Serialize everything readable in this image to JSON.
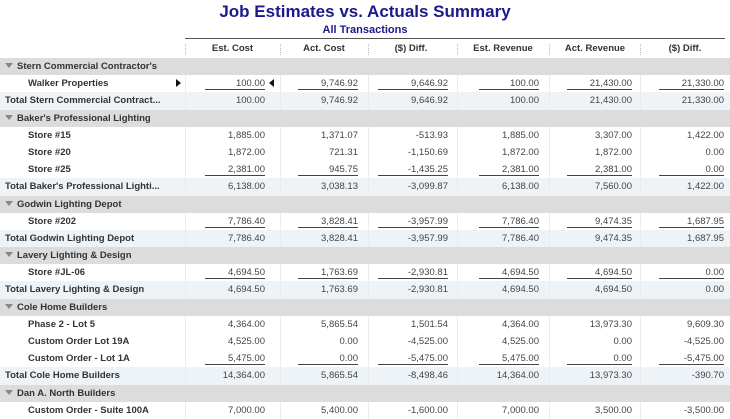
{
  "report": {
    "title": "Job Estimates vs. Actuals Summary",
    "subtitle": "All Transactions"
  },
  "columns": [
    "Est. Cost",
    "Act. Cost",
    "($) Diff.",
    "Est. Revenue",
    "Act. Revenue",
    "($) Diff."
  ],
  "rows": [
    {
      "type": "group",
      "label": "Stern Commercial Contractor's"
    },
    {
      "type": "item",
      "label": "Walker Properties",
      "values": [
        "100.00",
        "9,746.92",
        "9,646.92",
        "100.00",
        "21,430.00",
        "21,330.00"
      ],
      "underline": true,
      "selected": true
    },
    {
      "type": "total",
      "label": "Total Stern Commercial Contract...",
      "values": [
        "100.00",
        "9,746.92",
        "9,646.92",
        "100.00",
        "21,430.00",
        "21,330.00"
      ]
    },
    {
      "type": "group",
      "label": "Baker's Professional Lighting"
    },
    {
      "type": "item",
      "label": "Store #15",
      "values": [
        "1,885.00",
        "1,371.07",
        "-513.93",
        "1,885.00",
        "3,307.00",
        "1,422.00"
      ]
    },
    {
      "type": "item",
      "label": "Store #20",
      "values": [
        "1,872.00",
        "721.31",
        "-1,150.69",
        "1,872.00",
        "1,872.00",
        "0.00"
      ]
    },
    {
      "type": "item",
      "label": "Store #25",
      "values": [
        "2,381.00",
        "945.75",
        "-1,435.25",
        "2,381.00",
        "2,381.00",
        "0.00"
      ],
      "underline": true
    },
    {
      "type": "total",
      "label": "Total Baker's Professional Lighti...",
      "values": [
        "6,138.00",
        "3,038.13",
        "-3,099.87",
        "6,138.00",
        "7,560.00",
        "1,422.00"
      ]
    },
    {
      "type": "group",
      "label": "Godwin Lighting Depot"
    },
    {
      "type": "item",
      "label": "Store #202",
      "values": [
        "7,786.40",
        "3,828.41",
        "-3,957.99",
        "7,786.40",
        "9,474.35",
        "1,687.95"
      ],
      "underline": true
    },
    {
      "type": "total",
      "label": "Total Godwin Lighting Depot",
      "values": [
        "7,786.40",
        "3,828.41",
        "-3,957.99",
        "7,786.40",
        "9,474.35",
        "1,687.95"
      ]
    },
    {
      "type": "group",
      "label": "Lavery Lighting & Design"
    },
    {
      "type": "item",
      "label": "Store #JL-06",
      "values": [
        "4,694.50",
        "1,763.69",
        "-2,930.81",
        "4,694.50",
        "4,694.50",
        "0.00"
      ],
      "underline": true
    },
    {
      "type": "total",
      "label": "Total Lavery Lighting & Design",
      "values": [
        "4,694.50",
        "1,763.69",
        "-2,930.81",
        "4,694.50",
        "4,694.50",
        "0.00"
      ]
    },
    {
      "type": "group",
      "label": "Cole Home Builders"
    },
    {
      "type": "item",
      "label": "Phase 2 - Lot 5",
      "values": [
        "4,364.00",
        "5,865.54",
        "1,501.54",
        "4,364.00",
        "13,973.30",
        "9,609.30"
      ]
    },
    {
      "type": "item",
      "label": "Custom Order Lot 19A",
      "values": [
        "4,525.00",
        "0.00",
        "-4,525.00",
        "4,525.00",
        "0.00",
        "-4,525.00"
      ]
    },
    {
      "type": "item",
      "label": "Custom Order - Lot 1A",
      "values": [
        "5,475.00",
        "0.00",
        "-5,475.00",
        "5,475.00",
        "0.00",
        "-5,475.00"
      ],
      "underline": true
    },
    {
      "type": "total",
      "label": "Total Cole Home Builders",
      "values": [
        "14,364.00",
        "5,865.54",
        "-8,498.46",
        "14,364.00",
        "13,973.30",
        "-390.70"
      ]
    },
    {
      "type": "group",
      "label": "Dan A. North Builders"
    },
    {
      "type": "item",
      "label": "Custom Order - Suite 100A",
      "values": [
        "7,000.00",
        "5,400.00",
        "-1,600.00",
        "7,000.00",
        "3,500.00",
        "-3,500.00"
      ]
    }
  ]
}
